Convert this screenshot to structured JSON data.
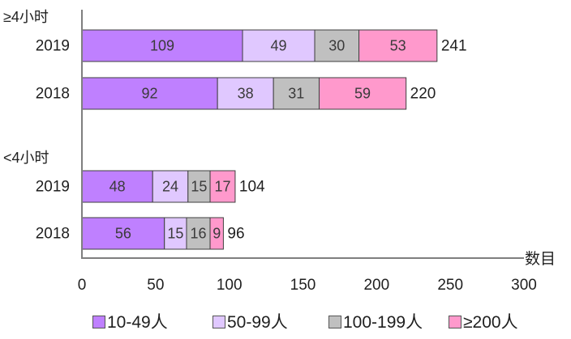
{
  "chart_data": {
    "type": "bar",
    "orientation": "horizontal",
    "stacked": true,
    "groups": [
      {
        "label": "≥4小时",
        "rows": [
          {
            "label": "2019",
            "values": [
              109,
              49,
              30,
              53
            ],
            "total": 241
          },
          {
            "label": "2018",
            "values": [
              92,
              38,
              31,
              59
            ],
            "total": 220
          }
        ]
      },
      {
        "label": "<4小时",
        "rows": [
          {
            "label": "2019",
            "values": [
              48,
              24,
              15,
              17
            ],
            "total": 104
          },
          {
            "label": "2018",
            "values": [
              56,
              15,
              16,
              9
            ],
            "total": 96
          }
        ]
      }
    ],
    "series": [
      {
        "name": "10-49人",
        "color": "#bf80ff"
      },
      {
        "name": "50-99人",
        "color": "#e0c8ff"
      },
      {
        "name": "100-199人",
        "color": "#c0c0c0"
      },
      {
        "name": "≥200人",
        "color": "#ff99cc"
      }
    ],
    "xlabel": "数目",
    "xlim": [
      0,
      300
    ],
    "xticks": [
      0,
      50,
      100,
      150,
      200,
      250,
      300
    ],
    "grid": false,
    "legend_position": "bottom"
  }
}
